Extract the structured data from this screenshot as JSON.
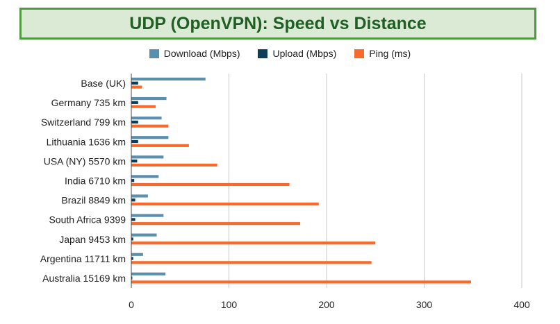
{
  "chart_data": {
    "type": "bar",
    "orientation": "horizontal",
    "title": "UDP (OpenVPN): Speed vs Distance",
    "categories": [
      "Base (UK)",
      "Germany 735 km",
      "Switzerland 799 km",
      "Lithuania 1636 km",
      "USA (NY) 5570 km",
      "India 6710 km",
      "Brazil 8849 km",
      "South Africa 9399",
      "Japan 9453 km",
      "Argentina 11711 km",
      "Australia 15169 km"
    ],
    "series": [
      {
        "name": "Download (Mbps)",
        "color": "#5b8fae",
        "values": [
          76,
          36,
          31,
          38,
          33,
          28,
          17,
          33,
          26,
          12,
          35
        ]
      },
      {
        "name": "Upload (Mbps)",
        "color": "#0e3d5c",
        "values": [
          7,
          7,
          7,
          7,
          6,
          3,
          4,
          4,
          2,
          2,
          1
        ]
      },
      {
        "name": "Ping (ms)",
        "color": "#f76a2b",
        "values": [
          11,
          25,
          38,
          59,
          88,
          162,
          192,
          173,
          250,
          246,
          348
        ]
      }
    ],
    "xlim": [
      0,
      400
    ],
    "xticks": [
      0,
      100,
      200,
      300,
      400
    ],
    "grid": true,
    "legend_position": "top"
  }
}
